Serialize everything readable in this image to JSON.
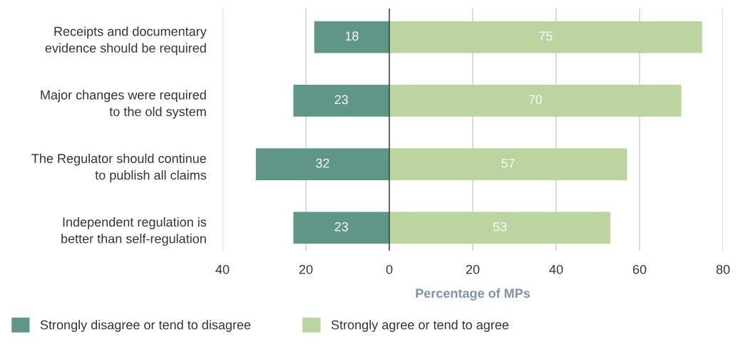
{
  "chart_data": {
    "type": "bar",
    "orientation": "horizontal",
    "categories": [
      "Receipts and documentary\nevidence should be required",
      "Major changes were required\nto the old system",
      "The Regulator should continue\nto publish all claims",
      "Independent regulation is\nbetter than self-regulation"
    ],
    "series": [
      {
        "name": "Strongly disagree or tend to disagree",
        "color": "#5f9688",
        "values": [
          18,
          23,
          32,
          23
        ],
        "base": [
          -18,
          -23,
          -32,
          -23
        ]
      },
      {
        "name": "Strongly agree or tend to agree",
        "color": "#bcd5a0",
        "values": [
          75,
          70,
          57,
          53
        ],
        "base": [
          0,
          0,
          0,
          0
        ]
      }
    ],
    "xlabel": "Percentage of MPs",
    "xlim": [
      -40,
      80
    ],
    "xticks": [
      {
        "value": -40,
        "label": "40"
      },
      {
        "value": -20,
        "label": "20"
      },
      0,
      20,
      40,
      60,
      80
    ],
    "ref_lines": [
      {
        "axis": "x",
        "value": 0,
        "color": "#333333"
      }
    ],
    "grid": "x",
    "legend": "bottom left",
    "data_labels": true
  }
}
